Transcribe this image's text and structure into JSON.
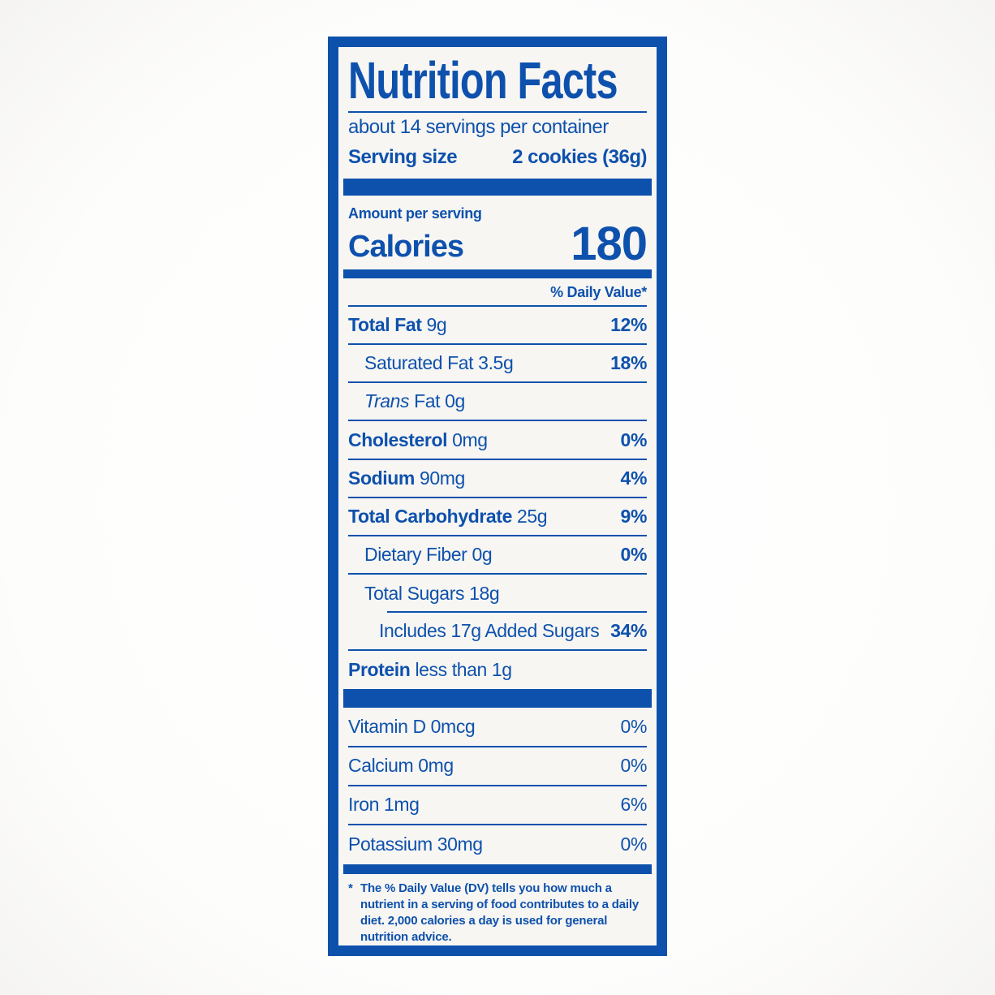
{
  "colors": {
    "blue": "#0e51ad",
    "label_background": "#f7f6f3",
    "page_background": "#ffffff"
  },
  "label": {
    "title": "Nutrition Facts",
    "servings_line": "about 14 servings per container",
    "serving_size": {
      "label": "Serving size",
      "value": "2 cookies (36g)"
    },
    "amount_per_serving": "Amount per serving",
    "calories": {
      "label": "Calories",
      "value": "180"
    },
    "daily_value_header": "% Daily Value*",
    "nutrients": [
      {
        "name": "Total Fat",
        "amount": "9g",
        "dv": "12%"
      },
      {
        "name": "Saturated Fat",
        "amount": "3.5g",
        "dv": "18%"
      },
      {
        "name_italic": "Trans",
        "name": "Fat",
        "amount": "0g",
        "dv": ""
      },
      {
        "name": "Cholesterol",
        "amount": "0mg",
        "dv": "0%"
      },
      {
        "name": "Sodium",
        "amount": "90mg",
        "dv": "4%"
      },
      {
        "name": "Total Carbohydrate",
        "amount": "25g",
        "dv": "9%"
      },
      {
        "name": "Dietary Fiber",
        "amount": "0g",
        "dv": "0%"
      },
      {
        "name": "Total Sugars",
        "amount": "18g",
        "dv": ""
      },
      {
        "name": "Includes 17g Added Sugars",
        "amount": "",
        "dv": "34%"
      },
      {
        "name": "Protein",
        "amount": "less than 1g",
        "dv": ""
      }
    ],
    "vitamins": [
      {
        "name": "Vitamin D 0mcg",
        "dv": "0%"
      },
      {
        "name": "Calcium 0mg",
        "dv": "0%"
      },
      {
        "name": "Iron 1mg",
        "dv": "6%"
      },
      {
        "name": "Potassium 30mg",
        "dv": "0%"
      }
    ],
    "footnote_marker": "*",
    "footnote": "The % Daily Value (DV) tells you how much a nutrient in a serving of food contributes to a daily diet. 2,000 calories a day is used for general nutrition advice."
  }
}
